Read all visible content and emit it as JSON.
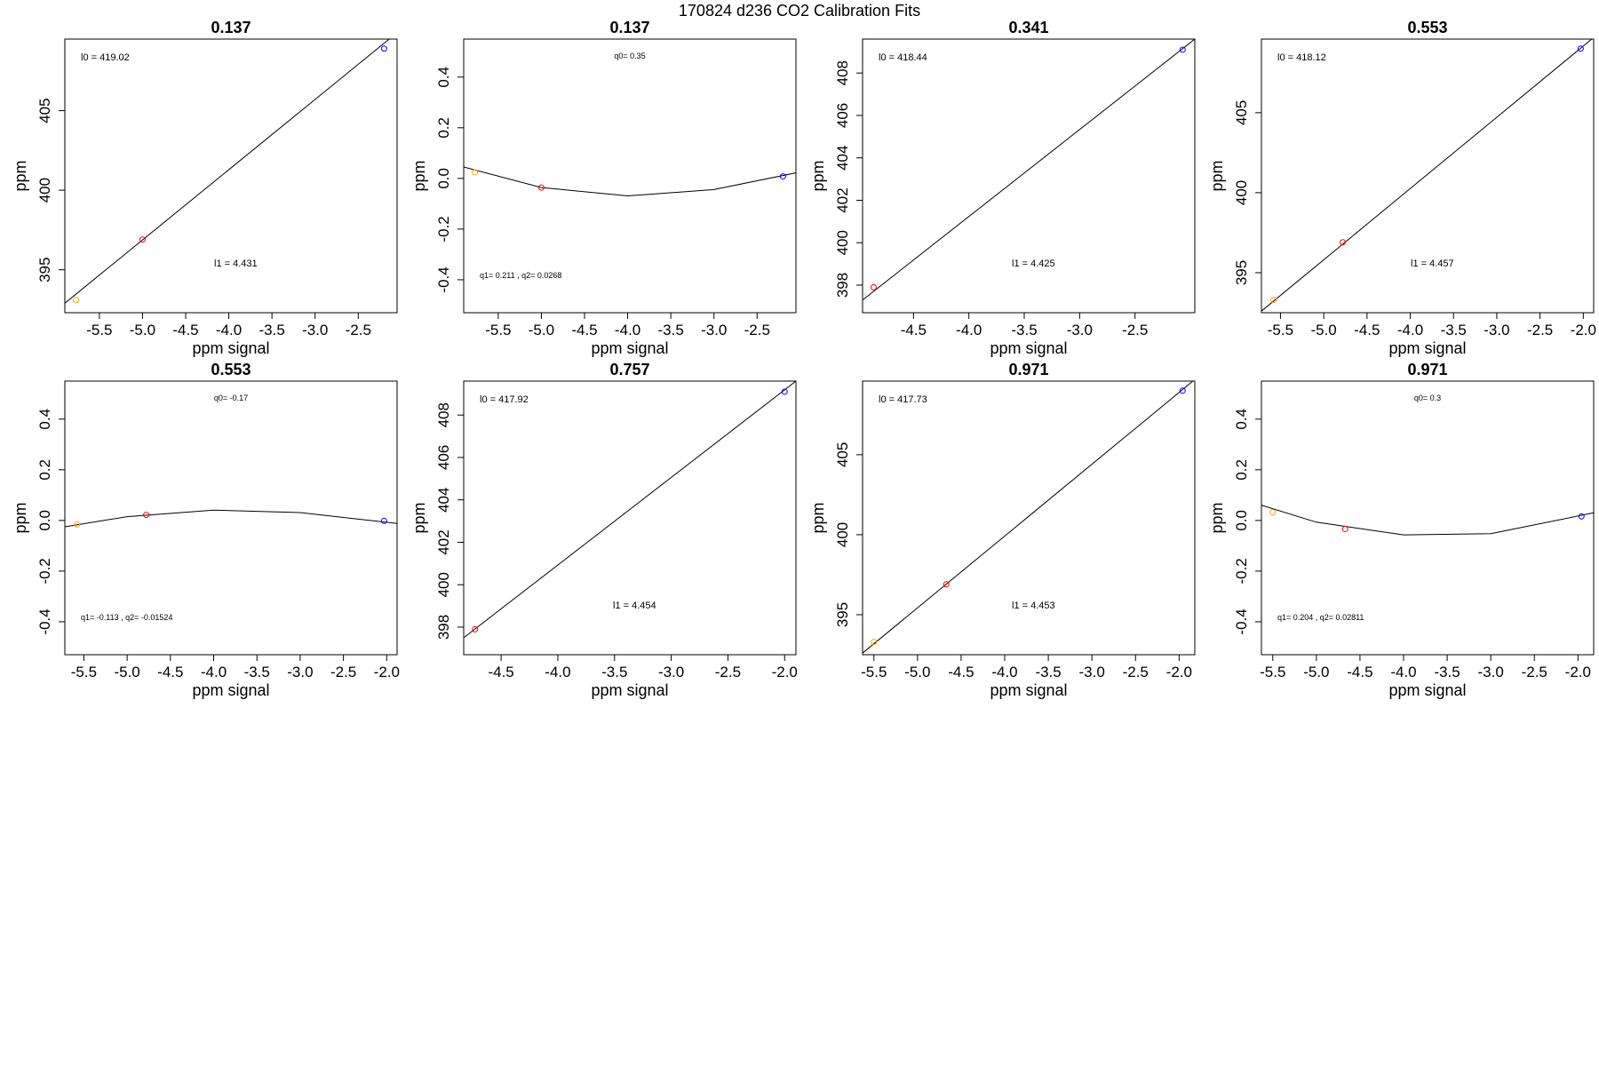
{
  "suptitle": "170824   d236   CO2 Calibration Fits",
  "colors": {
    "series": [
      "#FFA500",
      "#FF0000",
      "#0000FF"
    ],
    "line": "#000000"
  },
  "chart_data": [
    {
      "type": "scatter",
      "kind": "linear",
      "title": "0.137",
      "xlabel": "ppm signal",
      "ylabel": "ppm",
      "xlim": [
        -5.9,
        -2.05
      ],
      "ylim": [
        392.3,
        409.5
      ],
      "xticks": [
        -5.5,
        -5.0,
        -4.5,
        -4.0,
        -3.5,
        -3.0,
        -2.5
      ],
      "yticks": [
        395,
        400,
        405
      ],
      "points": [
        {
          "x": -5.77,
          "y": 393.1
        },
        {
          "x": -5.0,
          "y": 396.9
        },
        {
          "x": -2.2,
          "y": 408.9
        }
      ],
      "fit": [
        {
          "x": -5.9,
          "y": 392.9
        },
        {
          "x": -2.05,
          "y": 409.9
        }
      ],
      "annotations": [
        "l0 =  419.02",
        "l1 =  4.431"
      ]
    },
    {
      "type": "scatter",
      "kind": "residual",
      "title": "0.137",
      "xlabel": "ppm signal",
      "ylabel": "ppm",
      "xlim": [
        -5.9,
        -2.05
      ],
      "ylim": [
        -0.53,
        0.55
      ],
      "xticks": [
        -5.5,
        -5.0,
        -4.5,
        -4.0,
        -3.5,
        -3.0,
        -2.5
      ],
      "yticks": [
        -0.4,
        -0.2,
        0.0,
        0.2,
        0.4
      ],
      "points": [
        {
          "x": -5.77,
          "y": 0.024
        },
        {
          "x": -5.0,
          "y": -0.036
        },
        {
          "x": -2.2,
          "y": 0.008
        }
      ],
      "fit": [
        {
          "x": -5.9,
          "y": 0.045
        },
        {
          "x": -5.0,
          "y": -0.036
        },
        {
          "x": -4.0,
          "y": -0.069
        },
        {
          "x": -3.0,
          "y": -0.044
        },
        {
          "x": -2.05,
          "y": 0.022
        }
      ],
      "annotations": [
        "q0= 0.35",
        "q1= 0.211 , q2= 0.0268"
      ]
    },
    {
      "type": "scatter",
      "kind": "linear",
      "title": "0.341",
      "xlabel": "ppm signal",
      "ylabel": "ppm",
      "xlim": [
        -4.96,
        -1.96
      ],
      "ylim": [
        396.7,
        409.6
      ],
      "xticks": [
        -4.5,
        -4.0,
        -3.5,
        -3.0,
        -2.5
      ],
      "yticks": [
        398,
        400,
        402,
        404,
        406,
        408
      ],
      "points": [
        {
          "x": -4.86,
          "y": 397.9
        },
        {
          "x": -2.07,
          "y": 409.1
        }
      ],
      "fit": [
        {
          "x": -4.96,
          "y": 397.3
        },
        {
          "x": -1.96,
          "y": 409.6
        }
      ],
      "annotations": [
        "l0 =  418.44",
        "l1 =  4.425"
      ]
    },
    {
      "type": "scatter",
      "kind": "linear",
      "title": "0.553",
      "xlabel": "ppm signal",
      "ylabel": "ppm",
      "xlim": [
        -5.72,
        -1.88
      ],
      "ylim": [
        392.5,
        409.6
      ],
      "xticks": [
        -5.5,
        -5.0,
        -4.5,
        -4.0,
        -3.5,
        -3.0,
        -2.5,
        -2.0
      ],
      "yticks": [
        395,
        400,
        405
      ],
      "points": [
        {
          "x": -5.58,
          "y": 393.3
        },
        {
          "x": -4.78,
          "y": 396.9
        },
        {
          "x": -2.03,
          "y": 409.0
        }
      ],
      "fit": [
        {
          "x": -5.72,
          "y": 392.6
        },
        {
          "x": -1.88,
          "y": 409.7
        }
      ],
      "annotations": [
        "l0 =  418.12",
        "l1 =  4.457"
      ]
    },
    {
      "type": "scatter",
      "kind": "residual",
      "title": "0.553",
      "xlabel": "ppm signal",
      "ylabel": "ppm",
      "xlim": [
        -5.72,
        -1.88
      ],
      "ylim": [
        -0.53,
        0.55
      ],
      "xticks": [
        -5.5,
        -5.0,
        -4.5,
        -4.0,
        -3.5,
        -3.0,
        -2.5,
        -2.0
      ],
      "yticks": [
        -0.4,
        -0.2,
        0.0,
        0.2,
        0.4
      ],
      "points": [
        {
          "x": -5.58,
          "y": -0.016
        },
        {
          "x": -4.78,
          "y": 0.022
        },
        {
          "x": -2.03,
          "y": -0.002
        }
      ],
      "fit": [
        {
          "x": -5.72,
          "y": -0.025
        },
        {
          "x": -5.0,
          "y": 0.015
        },
        {
          "x": -4.0,
          "y": 0.041
        },
        {
          "x": -3.0,
          "y": 0.031
        },
        {
          "x": -1.88,
          "y": -0.012
        }
      ],
      "annotations": [
        "q0= -0.17",
        "q1= -0.113 , q2= -0.01524"
      ]
    },
    {
      "type": "scatter",
      "kind": "linear",
      "title": "0.757",
      "xlabel": "ppm signal",
      "ylabel": "ppm",
      "xlim": [
        -4.83,
        -1.9
      ],
      "ylim": [
        396.7,
        409.6
      ],
      "xticks": [
        -4.5,
        -4.0,
        -3.5,
        -3.0,
        -2.5,
        -2.0
      ],
      "yticks": [
        398,
        400,
        402,
        404,
        406,
        408
      ],
      "points": [
        {
          "x": -4.73,
          "y": 397.9
        },
        {
          "x": -2.0,
          "y": 409.1
        }
      ],
      "fit": [
        {
          "x": -4.83,
          "y": 397.5
        },
        {
          "x": -1.9,
          "y": 409.6
        }
      ],
      "annotations": [
        "l0 =  417.92",
        "l1 =  4.454"
      ]
    },
    {
      "type": "scatter",
      "kind": "linear",
      "title": "0.971",
      "xlabel": "ppm signal",
      "ylabel": "ppm",
      "xlim": [
        -5.63,
        -1.82
      ],
      "ylim": [
        392.5,
        409.6
      ],
      "xticks": [
        -5.5,
        -5.0,
        -4.5,
        -4.0,
        -3.5,
        -3.0,
        -2.5,
        -2.0
      ],
      "yticks": [
        395,
        400,
        405
      ],
      "points": [
        {
          "x": -5.5,
          "y": 393.3
        },
        {
          "x": -4.67,
          "y": 396.9
        },
        {
          "x": -1.96,
          "y": 409.0
        }
      ],
      "fit": [
        {
          "x": -5.63,
          "y": 392.6
        },
        {
          "x": -1.82,
          "y": 409.7
        }
      ],
      "annotations": [
        "l0 =  417.73",
        "l1 =  4.453"
      ]
    },
    {
      "type": "scatter",
      "kind": "residual",
      "title": "0.971",
      "xlabel": "ppm signal",
      "ylabel": "ppm",
      "xlim": [
        -5.63,
        -1.82
      ],
      "ylim": [
        -0.53,
        0.55
      ],
      "xticks": [
        -5.5,
        -5.0,
        -4.5,
        -4.0,
        -3.5,
        -3.0,
        -2.5,
        -2.0
      ],
      "yticks": [
        -0.4,
        -0.2,
        0.0,
        0.2,
        0.4
      ],
      "points": [
        {
          "x": -5.5,
          "y": 0.032
        },
        {
          "x": -4.67,
          "y": -0.034
        },
        {
          "x": -1.96,
          "y": 0.016
        }
      ],
      "fit": [
        {
          "x": -5.63,
          "y": 0.06
        },
        {
          "x": -5.0,
          "y": -0.007
        },
        {
          "x": -4.0,
          "y": -0.057
        },
        {
          "x": -3.0,
          "y": -0.052
        },
        {
          "x": -1.82,
          "y": 0.03
        }
      ],
      "annotations": [
        "q0= 0.3",
        "q1= 0.204 , q2= 0.02811"
      ]
    }
  ]
}
